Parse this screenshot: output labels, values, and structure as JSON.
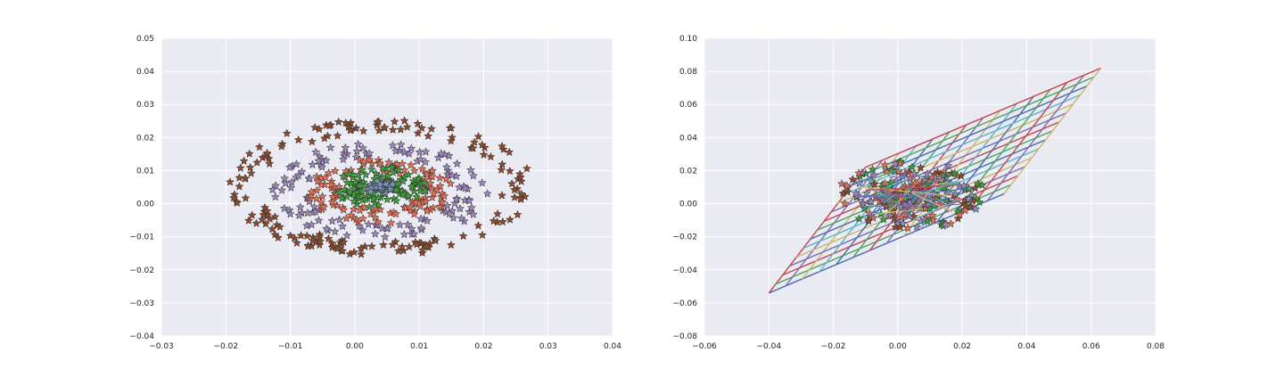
{
  "chart_data": [
    {
      "type": "scatter",
      "title": "",
      "xlabel": "",
      "ylabel": "",
      "xlim": [
        -0.03,
        0.04
      ],
      "ylim": [
        -0.04,
        0.05
      ],
      "xticks": [
        "−0.03",
        "−0.02",
        "−0.01",
        "0.00",
        "0.01",
        "0.02",
        "0.03",
        "0.04"
      ],
      "yticks": [
        "−0.04",
        "−0.03",
        "−0.02",
        "−0.01",
        "0.00",
        "0.01",
        "0.02",
        "0.03",
        "0.04",
        "0.05"
      ],
      "grid": true,
      "marker": "star",
      "series": [
        {
          "color": "#8c4a2e",
          "shape": "outer spiral ring",
          "center": [
            0.004,
            0.005
          ],
          "radius": [
            0.018,
            0.0225
          ],
          "count": 170
        },
        {
          "color": "#9b84b9",
          "shape": "spiral ring",
          "center": [
            0.004,
            0.004
          ],
          "radius": [
            0.011,
            0.016
          ],
          "count": 130
        },
        {
          "color": "#e06c52",
          "shape": "spiral ring",
          "center": [
            0.004,
            0.004
          ],
          "radius": [
            0.006,
            0.011
          ],
          "count": 130
        },
        {
          "color": "#3f9a3c",
          "shape": "inner ring",
          "center": [
            0.004,
            0.005
          ],
          "radius": [
            0.002,
            0.007
          ],
          "count": 110
        },
        {
          "color": "#8094b8",
          "shape": "core cluster",
          "center": [
            0.004,
            0.005
          ],
          "radius": [
            0.0,
            0.0022
          ],
          "count": 60
        }
      ]
    },
    {
      "type": "line",
      "title": "",
      "xlabel": "",
      "ylabel": "",
      "xlim": [
        -0.06,
        0.08
      ],
      "ylim": [
        -0.08,
        0.1
      ],
      "xticks": [
        "−0.06",
        "−0.04",
        "−0.02",
        "0.00",
        "0.02",
        "0.04",
        "0.06",
        "0.08"
      ],
      "yticks": [
        "−0.08",
        "−0.06",
        "−0.04",
        "−0.02",
        "0.00",
        "0.02",
        "0.04",
        "0.06",
        "0.08",
        "0.10"
      ],
      "grid": true,
      "grid_lines": {
        "corners": {
          "bottom_left": [
            -0.04,
            -0.054
          ],
          "bottom_right": [
            0.033,
            0.006
          ],
          "top_left": [
            -0.01,
            0.022
          ],
          "top_right": [
            0.063,
            0.082
          ]
        },
        "divisions": 14,
        "colors": [
          "#4c72b0",
          "#55a868",
          "#c44e52",
          "#8172b2",
          "#ccb974",
          "#64b5cd"
        ]
      },
      "scatter_overlay": {
        "marker": "star",
        "center": [
          0.004,
          0.005
        ],
        "radius": [
          0.0,
          0.0225
        ],
        "count": 300,
        "colors": [
          "#8c4a2e",
          "#9b84b9",
          "#e06c52",
          "#3f9a3c",
          "#8094b8"
        ]
      }
    }
  ]
}
